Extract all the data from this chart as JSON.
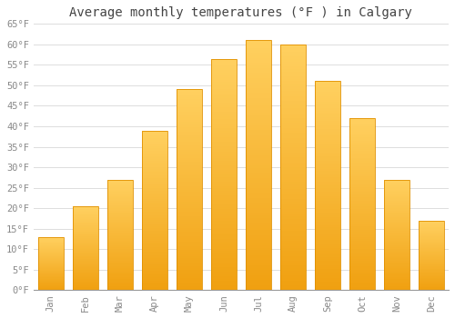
{
  "months": [
    "Jan",
    "Feb",
    "Mar",
    "Apr",
    "May",
    "Jun",
    "Jul",
    "Aug",
    "Sep",
    "Oct",
    "Nov",
    "Dec"
  ],
  "values": [
    13,
    20.5,
    27,
    39,
    49,
    56.5,
    61,
    60,
    51,
    42,
    27,
    17
  ],
  "bar_color_bottom": "#F0A010",
  "bar_color_top": "#FFD060",
  "bar_edge_color": "#E09000",
  "title": "Average monthly temperatures (°F ) in Calgary",
  "ylim": [
    0,
    65
  ],
  "background_color": "#FFFFFF",
  "grid_color": "#DDDDDD",
  "title_fontsize": 10,
  "tick_fontsize": 7.5,
  "font_family": "monospace"
}
